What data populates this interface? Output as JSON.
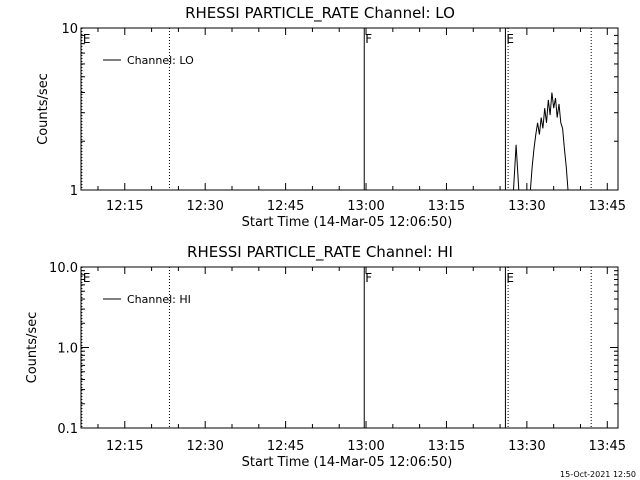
{
  "chart_data": [
    {
      "type": "line",
      "title": "RHESSI PARTICLE_RATE Channel: LO",
      "xlabel": "Start Time (14-Mar-05 12:06:50)",
      "ylabel": "Counts/sec",
      "yscale": "log",
      "xlim": [
        "12:06:50",
        "13:47:00"
      ],
      "ylim": [
        1,
        10
      ],
      "x_ticks": [
        "12:15",
        "12:30",
        "12:45",
        "13:00",
        "13:15",
        "13:30",
        "13:45"
      ],
      "y_ticks": [
        "1",
        "10"
      ],
      "legend": "Channel: LO",
      "legend_position": "top-left",
      "markers": [
        {
          "time": "12:07:00",
          "label": "E",
          "style": "dotted"
        },
        {
          "time": "12:23:20",
          "label": "",
          "style": "dotted"
        },
        {
          "time": "12:59:40",
          "label": "F",
          "style": "solid"
        },
        {
          "time": "13:26:00",
          "label": "E",
          "style": "solid"
        },
        {
          "time": "13:26:30",
          "label": "",
          "style": "dotted"
        },
        {
          "time": "13:42:00",
          "label": "",
          "style": "dotted"
        }
      ],
      "series": [
        {
          "name": "Channel: LO",
          "x": [
            "13:27:30",
            "13:28:00",
            "13:28:30",
            "13:29:00",
            "13:29:20",
            "13:29:40",
            "13:30:00",
            "13:30:20",
            "13:30:40",
            "13:31:00",
            "13:31:20",
            "13:31:40",
            "13:32:00",
            "13:32:20",
            "13:32:40",
            "13:33:00",
            "13:33:20",
            "13:33:40",
            "13:34:00",
            "13:34:20",
            "13:34:40",
            "13:35:00",
            "13:35:20",
            "13:35:40",
            "13:36:00",
            "13:36:20",
            "13:36:40",
            "13:37:00",
            "13:37:20",
            "13:37:40"
          ],
          "y": [
            1.0,
            1.9,
            1.0,
            1.0,
            1.0,
            1.0,
            1.0,
            1.0,
            1.0,
            1.4,
            1.8,
            2.2,
            2.6,
            2.2,
            2.8,
            2.4,
            3.2,
            2.6,
            3.6,
            2.9,
            4.0,
            3.2,
            3.7,
            2.8,
            3.4,
            2.6,
            2.4,
            1.8,
            1.4,
            1.0
          ]
        }
      ]
    },
    {
      "type": "line",
      "title": "RHESSI PARTICLE_RATE Channel: HI",
      "xlabel": "Start Time (14-Mar-05 12:06:50)",
      "ylabel": "Counts/sec",
      "yscale": "log",
      "xlim": [
        "12:06:50",
        "13:47:00"
      ],
      "ylim": [
        0.1,
        10.0
      ],
      "x_ticks": [
        "12:15",
        "12:30",
        "12:45",
        "13:00",
        "13:15",
        "13:30",
        "13:45"
      ],
      "y_ticks": [
        "0.1",
        "1.0",
        "10.0"
      ],
      "legend": "Channel: HI",
      "legend_position": "top-left",
      "markers": [
        {
          "time": "12:07:00",
          "label": "E",
          "style": "dotted"
        },
        {
          "time": "12:23:20",
          "label": "",
          "style": "dotted"
        },
        {
          "time": "12:59:40",
          "label": "F",
          "style": "solid"
        },
        {
          "time": "13:26:00",
          "label": "E",
          "style": "solid"
        },
        {
          "time": "13:26:30",
          "label": "",
          "style": "dotted"
        },
        {
          "time": "13:42:00",
          "label": "",
          "style": "dotted"
        }
      ],
      "series": [
        {
          "name": "Channel: HI",
          "x": [],
          "y": []
        }
      ]
    }
  ],
  "footer": "15-Oct-2021 12:50"
}
